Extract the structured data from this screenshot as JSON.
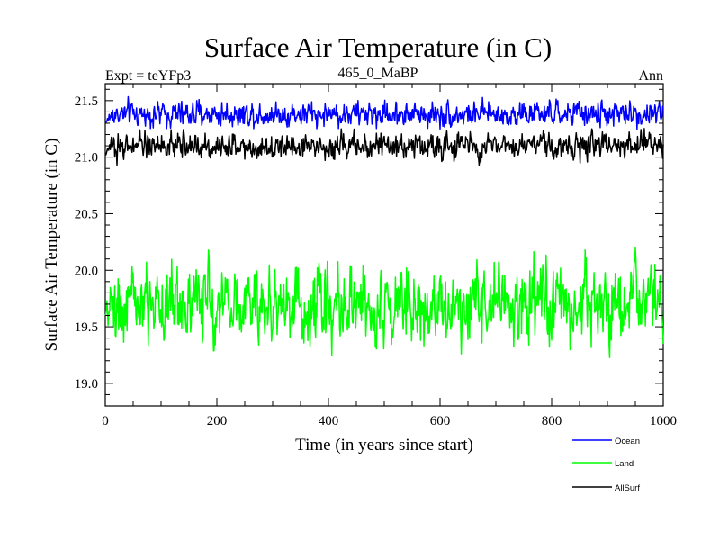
{
  "chart_data": {
    "type": "line",
    "title": "Surface Air Temperature (in C)",
    "subtitle_left": "Expt = teYFp3",
    "subtitle_center": "465_0_MaBP",
    "subtitle_right": "Ann",
    "xlabel": "Time (in years since start)",
    "ylabel": "Surface Air Temperature (in C)",
    "xlim": [
      0,
      1000
    ],
    "ylim": [
      18.8,
      21.65
    ],
    "x_ticks": [
      0,
      200,
      400,
      600,
      800,
      1000
    ],
    "x_tick_labels": [
      "0",
      "200",
      "400",
      "600",
      "800",
      "1000"
    ],
    "y_ticks": [
      19.0,
      19.5,
      20.0,
      20.5,
      21.0,
      21.5
    ],
    "y_tick_labels": [
      "19.0",
      "19.5",
      "20.0",
      "20.5",
      "21.0",
      "21.5"
    ],
    "grid": false,
    "legend_position": "bottom-right, below axes",
    "x_range": {
      "start": 0,
      "end": 1000,
      "step": 1
    },
    "series": [
      {
        "name": "Ocean",
        "color": "#0000ff",
        "mean": 21.38,
        "spread": 0.065,
        "min": 21.18,
        "max": 21.56,
        "start_value": 21.3
      },
      {
        "name": "Land",
        "color": "#00ff00",
        "mean": 19.7,
        "spread": 0.2,
        "min": 19.17,
        "max": 20.2,
        "start_value": 19.6
      },
      {
        "name": "AllSurf",
        "color": "#000000",
        "mean": 21.1,
        "spread": 0.065,
        "min": 20.93,
        "max": 21.28,
        "start_value": 21.02
      }
    ]
  }
}
